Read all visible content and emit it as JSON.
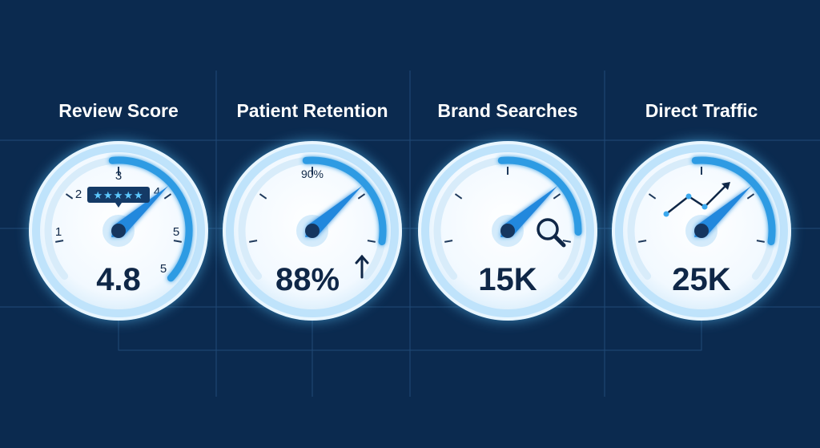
{
  "colors": {
    "background": "#0b2a4f",
    "grid": "#24507f",
    "dial_face": "#f7fbff",
    "dial_ring": "#bfe3fb",
    "glow": "#59c6ff",
    "arc": "#2f9be3",
    "needle": "#2288dd",
    "text_dark": "#0f2747",
    "title": "#ffffff"
  },
  "gauges": [
    {
      "title": "Review Score",
      "value": "4.8",
      "level": 0.96,
      "icon": "star-rating-icon",
      "scale_labels": [
        "1",
        "2",
        "3",
        "4",
        "5",
        "5"
      ],
      "stars": "★★★★★"
    },
    {
      "title": "Patient Retention",
      "value": "88%",
      "level": 0.88,
      "icon": "arrow-up-icon",
      "scale_labels": [
        "90%"
      ]
    },
    {
      "title": "Brand Searches",
      "value": "15K",
      "level": 0.85,
      "icon": "magnifier-icon",
      "scale_labels": []
    },
    {
      "title": "Direct Traffic",
      "value": "25K",
      "level": 0.88,
      "icon": "trend-line-icon",
      "scale_labels": []
    }
  ]
}
